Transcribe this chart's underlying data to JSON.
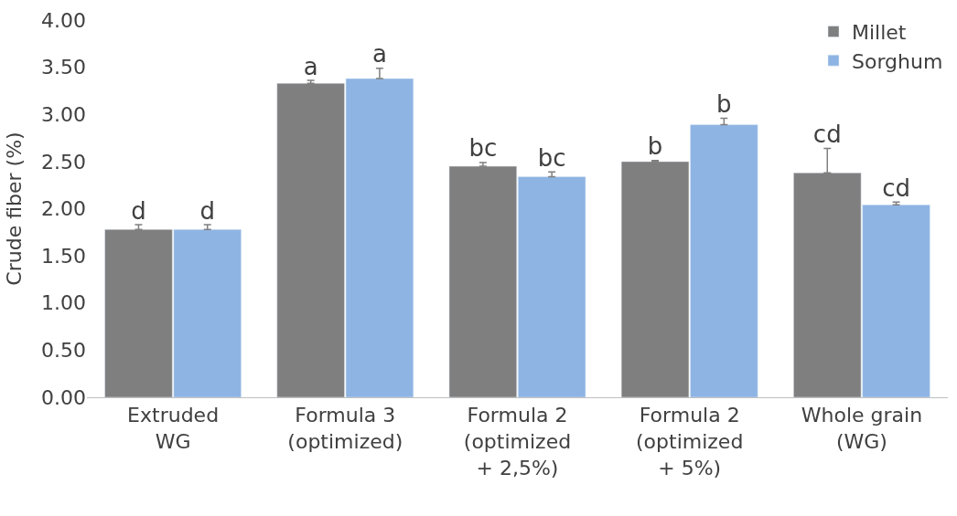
{
  "chart_data": {
    "type": "bar",
    "ylabel": "Crude fiber (%)",
    "categories": [
      "Extruded\nWG",
      "Formula 3\n(optimized)",
      "Formula 2\n(optimized\n+ 2,5%)",
      "Formula 2\n(optimized\n+ 5%)",
      "Whole grain\n(WG)"
    ],
    "series": [
      {
        "name": "Millet",
        "color": "#7f7f7f",
        "values": [
          1.78,
          3.33,
          2.45,
          2.5,
          2.38
        ],
        "errors": [
          [
            1.78,
            1.83
          ],
          [
            3.33,
            3.36
          ],
          [
            2.45,
            2.49
          ],
          [
            2.5,
            2.51
          ],
          [
            2.38,
            2.64
          ]
        ],
        "value_labels": [
          "d",
          "a",
          "bc",
          "b",
          "cd"
        ]
      },
      {
        "name": "Sorghum",
        "color": "#8eb4e3",
        "values": [
          1.78,
          3.38,
          2.34,
          2.89,
          2.04
        ],
        "errors": [
          [
            1.78,
            1.83
          ],
          [
            3.38,
            3.49
          ],
          [
            2.34,
            2.39
          ],
          [
            2.89,
            2.96
          ],
          [
            2.04,
            2.07
          ]
        ],
        "value_labels": [
          "d",
          "a",
          "bc",
          "b",
          "cd"
        ]
      }
    ],
    "ylim": [
      0,
      4
    ],
    "yticks": [
      {
        "value": 0,
        "label": "0.00"
      },
      {
        "value": 0.5,
        "label": "0.50"
      },
      {
        "value": 1,
        "label": "1.00"
      },
      {
        "value": 1.5,
        "label": "1.50"
      },
      {
        "value": 2,
        "label": "2.00"
      },
      {
        "value": 2.5,
        "label": "2.50"
      },
      {
        "value": 3,
        "label": "3.00"
      },
      {
        "value": 3.5,
        "label": "3.50"
      },
      {
        "value": 4,
        "label": "4.00"
      }
    ],
    "grid": false,
    "legend": "top right"
  }
}
